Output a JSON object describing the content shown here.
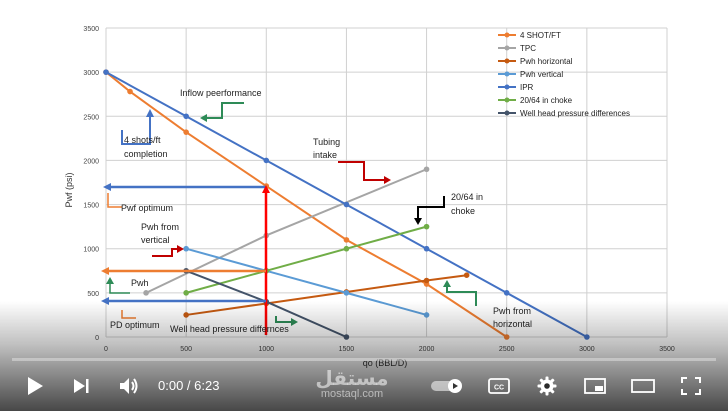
{
  "chart_data": {
    "type": "line",
    "xlabel": "qo (BBL/D)",
    "ylabel": "Pwf (psi)",
    "xlim": [
      0,
      3500
    ],
    "ylim": [
      0,
      3500
    ],
    "xticks": [
      0,
      500,
      1000,
      1500,
      2000,
      2500,
      3000,
      3500
    ],
    "yticks": [
      0,
      500,
      1000,
      1500,
      2000,
      2500,
      3000,
      3500
    ],
    "grid": true,
    "legend_position": "top-right",
    "series": [
      {
        "name": "4 SHOT/FT",
        "color": "#ed7d31",
        "marker": "circle",
        "points": [
          [
            0,
            3000
          ],
          [
            150,
            2780
          ],
          [
            500,
            2320
          ],
          [
            1000,
            1710
          ],
          [
            1500,
            1100
          ],
          [
            2000,
            600
          ],
          [
            2500,
            0
          ]
        ]
      },
      {
        "name": "TPC",
        "color": "#a5a5a5",
        "marker": "circle",
        "points": [
          [
            250,
            500
          ],
          [
            1000,
            1150
          ],
          [
            2000,
            1900
          ]
        ]
      },
      {
        "name": "Pwh horizontal",
        "color": "#c55a11",
        "marker": "circle",
        "points": [
          [
            500,
            250
          ],
          [
            1000,
            380
          ],
          [
            1500,
            510
          ],
          [
            2000,
            640
          ],
          [
            2250,
            700
          ]
        ]
      },
      {
        "name": "Pwh vertical",
        "color": "#5b9bd5",
        "marker": "circle",
        "points": [
          [
            500,
            1000
          ],
          [
            1000,
            750
          ],
          [
            1500,
            500
          ],
          [
            2000,
            250
          ]
        ]
      },
      {
        "name": "IPR",
        "color": "#4472c4",
        "marker": "circle",
        "points": [
          [
            0,
            3000
          ],
          [
            500,
            2500
          ],
          [
            1000,
            2000
          ],
          [
            1500,
            1500
          ],
          [
            2000,
            1000
          ],
          [
            2500,
            500
          ],
          [
            3000,
            0
          ]
        ]
      },
      {
        "name": "20/64 in choke",
        "color": "#70ad47",
        "marker": "circle",
        "points": [
          [
            500,
            500
          ],
          [
            1000,
            750
          ],
          [
            1500,
            1000
          ],
          [
            2000,
            1250
          ]
        ]
      },
      {
        "name": "Well head pressure differences",
        "color": "#44546a",
        "marker": "circle",
        "points": [
          [
            500,
            750
          ],
          [
            1000,
            400
          ],
          [
            1500,
            0
          ]
        ]
      }
    ],
    "annotations": [
      {
        "text": "Inflow peerformance"
      },
      {
        "text": "4 shots/ft completion",
        "lines": [
          "4 shots/ft",
          "completion"
        ]
      },
      {
        "text": "Tubing intake",
        "lines": [
          "Tubing",
          "intake"
        ]
      },
      {
        "text": "20/64 in choke",
        "lines": [
          "20/64 in",
          "choke"
        ]
      },
      {
        "text": "Pwf optimum"
      },
      {
        "text": "Pwh from vertical",
        "lines": [
          "Pwh from",
          "vertical"
        ]
      },
      {
        "text": "Pwh"
      },
      {
        "text": "PD optimum"
      },
      {
        "text": "Well head pressure differnces"
      },
      {
        "text": "Pwh from horizontal",
        "lines": [
          "Pwh from",
          "horizontal"
        ]
      }
    ]
  },
  "player": {
    "time_display": "0:00 / 6:23",
    "progress": 0,
    "accent_color": "#ff0000",
    "watermark_logo": "مستقل",
    "watermark_url": "mostaql.com",
    "controls": [
      "play-icon",
      "next-icon",
      "volume-icon",
      "autoplay-toggle-icon",
      "captions-icon",
      "settings-icon",
      "miniplayer-icon",
      "theater-mode-icon",
      "fullscreen-icon"
    ]
  }
}
